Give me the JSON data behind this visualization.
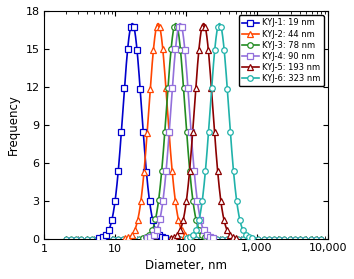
{
  "series": [
    {
      "label": "KYJ-1: 19 nm",
      "color": "#0000CD",
      "marker": "s",
      "mean_nm": 19,
      "sigma": 0.3
    },
    {
      "label": "KYJ-2: 44 nm",
      "color": "#FF4500",
      "marker": "^",
      "mean_nm": 44,
      "sigma": 0.3
    },
    {
      "label": "KYJ-3: 78 nm",
      "color": "#228B22",
      "marker": "o",
      "mean_nm": 78,
      "sigma": 0.3
    },
    {
      "label": "KYJ-4: 90 nm",
      "color": "#9370DB",
      "marker": "s",
      "mean_nm": 90,
      "sigma": 0.3
    },
    {
      "label": "KYJ-5: 193 nm",
      "color": "#8B0000",
      "marker": "^",
      "mean_nm": 193,
      "sigma": 0.3
    },
    {
      "label": "KYJ-6: 323 nm",
      "color": "#20B2AA",
      "marker": "o",
      "mean_nm": 323,
      "sigma": 0.3
    }
  ],
  "xlim": [
    1,
    10000
  ],
  "ylim": [
    0,
    18
  ],
  "yticks": [
    0,
    3,
    6,
    9,
    12,
    15,
    18
  ],
  "xlabel": "Diameter, nm",
  "ylabel": "Frequency",
  "peak_value": 17,
  "legend_loc": "upper right",
  "markersize": 4,
  "linewidth": 1.2,
  "n_markers": 22
}
